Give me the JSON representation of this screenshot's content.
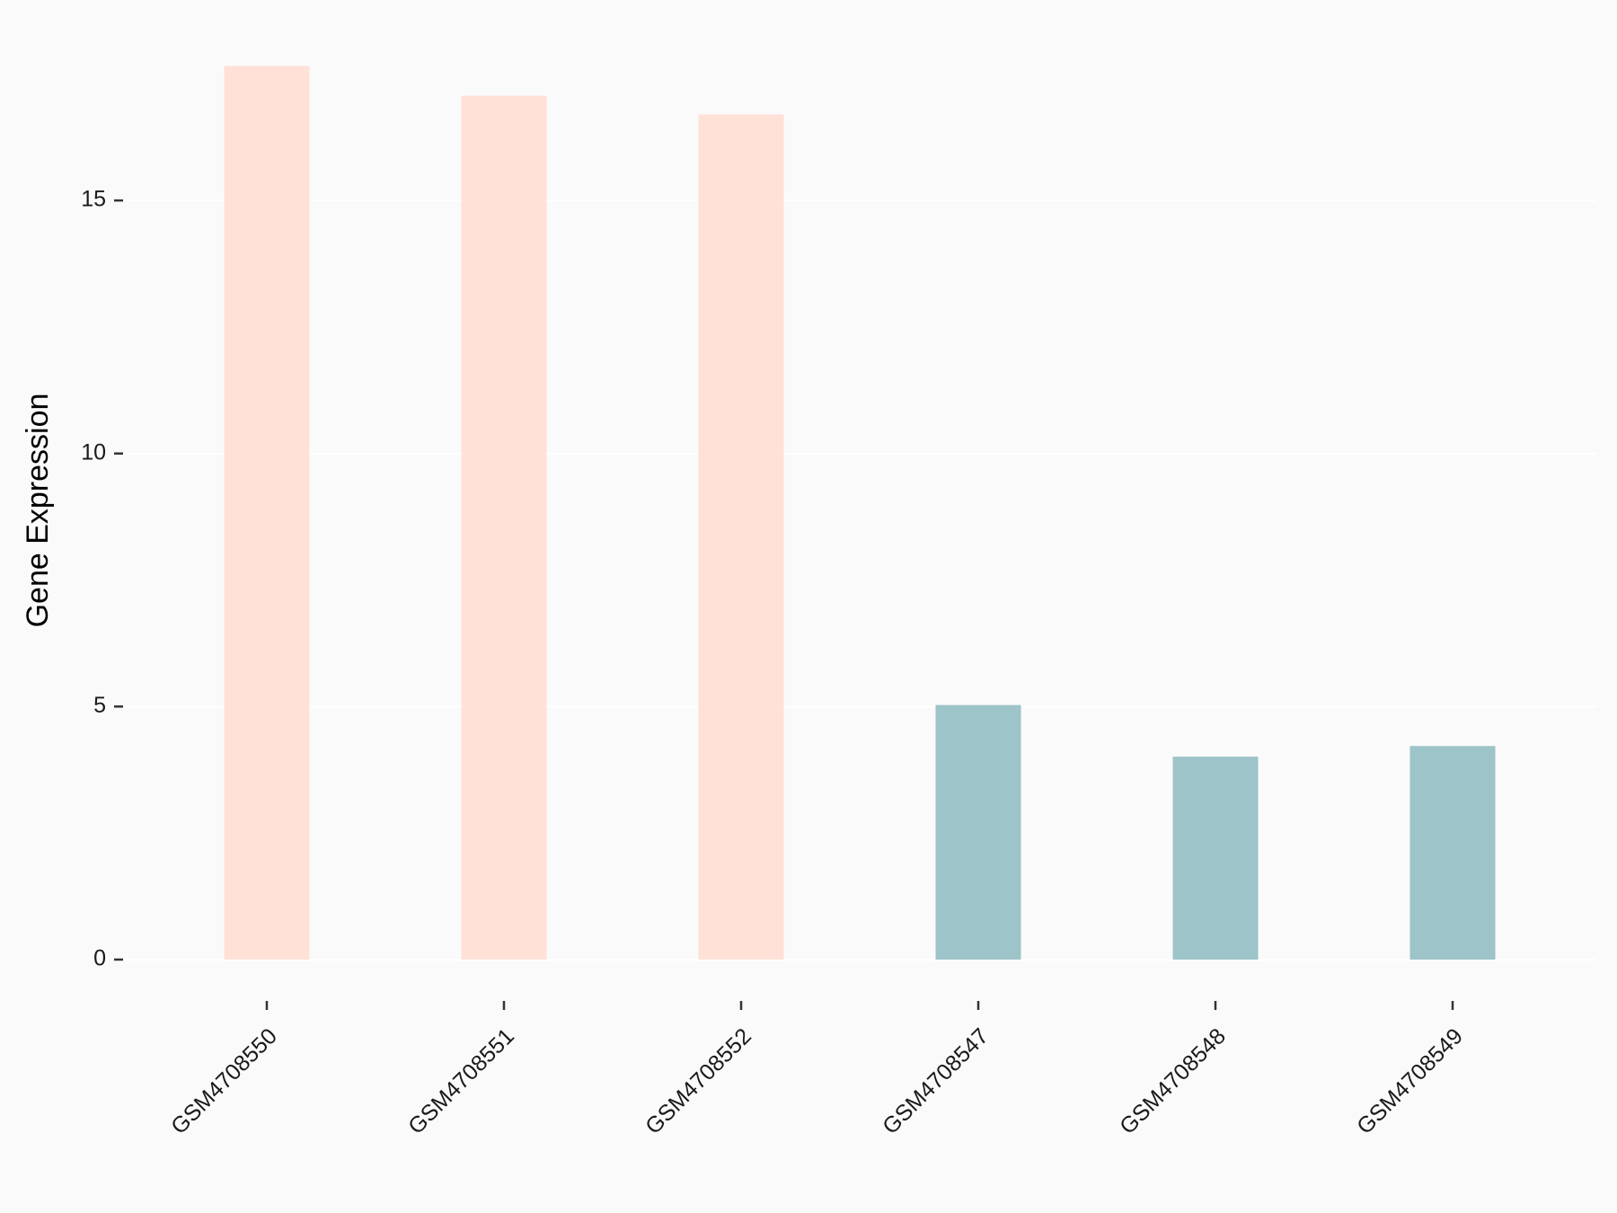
{
  "chart_data": {
    "type": "bar",
    "y_label": "Gene Expression",
    "categories": [
      "GSM4708550",
      "GSM4708551",
      "GSM4708552",
      "GSM4708547",
      "GSM4708548",
      "GSM4708549"
    ],
    "values": [
      17.66,
      17.07,
      16.7,
      5.03,
      4.01,
      4.22
    ],
    "colors": [
      "#ffe1d8",
      "#ffe1d8",
      "#ffe1d8",
      "#9dc4c8",
      "#9dc4c8",
      "#9dc4c8"
    ],
    "ylim": [
      -0.8,
      18.5
    ],
    "yticks": [
      0,
      5,
      10,
      15
    ],
    "grid": true
  }
}
